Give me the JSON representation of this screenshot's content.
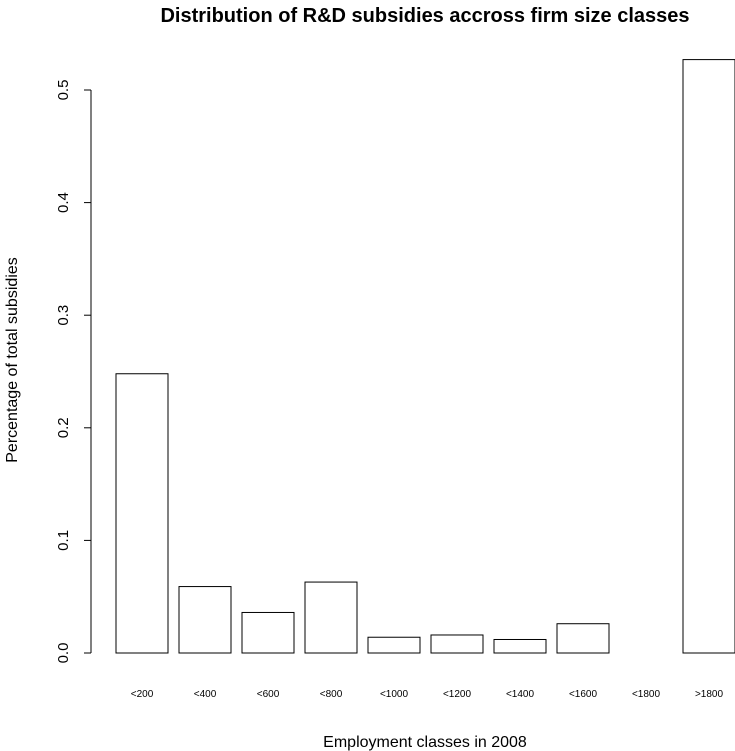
{
  "chart_data": {
    "type": "bar",
    "title": "Distribution of R&D subsidies accross firm size classes",
    "xlabel": "Employment classes in 2008",
    "ylabel": "Percentage of total subsidies",
    "categories": [
      "<200",
      "<400",
      "<600",
      "<800",
      "<1000",
      "<1200",
      "<1400",
      "<1600",
      "<1800",
      ">1800"
    ],
    "values": [
      0.248,
      0.059,
      0.036,
      0.063,
      0.014,
      0.016,
      0.012,
      0.026,
      0.0,
      0.527
    ],
    "yticks": [
      "0.0",
      "0.1",
      "0.2",
      "0.3",
      "0.4",
      "0.5"
    ],
    "ylim": [
      0,
      0.5
    ],
    "grid": false,
    "bar_fill": "#ffffff",
    "bar_stroke": "#000000"
  }
}
